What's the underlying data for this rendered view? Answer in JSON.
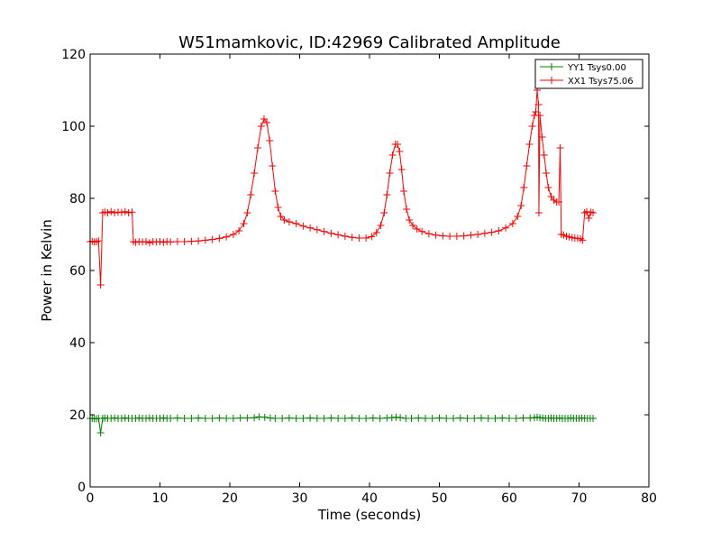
{
  "chart_data": {
    "type": "line",
    "title": "W51mamkovic, ID:42969 Calibrated Amplitude",
    "xlabel": "Time (seconds)",
    "ylabel": "Power in Kelvin",
    "xlim": [
      0,
      80
    ],
    "ylim": [
      0,
      120
    ],
    "xticks": [
      0,
      10,
      20,
      30,
      40,
      50,
      60,
      70,
      80
    ],
    "yticks": [
      0,
      20,
      40,
      60,
      80,
      100,
      120
    ],
    "grid": false,
    "legend_position": "top-right",
    "marker": "plus",
    "series": [
      {
        "name": "YY1 Tsys0.00",
        "color": "#008000",
        "points": [
          [
            0.0,
            19.0
          ],
          [
            0.3,
            19.0
          ],
          [
            0.6,
            18.9
          ],
          [
            0.9,
            18.9
          ],
          [
            1.2,
            19.0
          ],
          [
            1.5,
            15.0
          ],
          [
            1.8,
            19.0
          ],
          [
            2.1,
            19.1
          ],
          [
            2.5,
            19.0
          ],
          [
            3.0,
            19.0
          ],
          [
            3.5,
            19.1
          ],
          [
            4.0,
            19.0
          ],
          [
            4.5,
            19.0
          ],
          [
            5.0,
            19.1
          ],
          [
            5.5,
            19.0
          ],
          [
            6.0,
            19.0
          ],
          [
            6.5,
            19.0
          ],
          [
            7.0,
            19.1
          ],
          [
            7.5,
            19.0
          ],
          [
            8.0,
            19.0
          ],
          [
            8.5,
            19.1
          ],
          [
            9.0,
            19.0
          ],
          [
            9.5,
            19.0
          ],
          [
            10.0,
            19.0
          ],
          [
            10.5,
            19.1
          ],
          [
            11.0,
            19.0
          ],
          [
            11.5,
            19.0
          ],
          [
            12.5,
            19.1
          ],
          [
            13.5,
            19.0
          ],
          [
            14.5,
            19.0
          ],
          [
            15.5,
            19.1
          ],
          [
            16.5,
            19.0
          ],
          [
            17.5,
            19.0
          ],
          [
            18.5,
            19.1
          ],
          [
            19.5,
            19.0
          ],
          [
            20.5,
            19.0
          ],
          [
            21.5,
            19.1
          ],
          [
            22.5,
            19.1
          ],
          [
            23.5,
            19.2
          ],
          [
            24.2,
            19.4
          ],
          [
            25.0,
            19.3
          ],
          [
            25.8,
            19.1
          ],
          [
            26.5,
            19.0
          ],
          [
            27.5,
            19.0
          ],
          [
            28.5,
            19.1
          ],
          [
            29.5,
            19.0
          ],
          [
            30.5,
            19.0
          ],
          [
            31.5,
            19.1
          ],
          [
            32.5,
            19.0
          ],
          [
            33.5,
            19.0
          ],
          [
            34.5,
            19.1
          ],
          [
            35.5,
            19.0
          ],
          [
            36.5,
            19.0
          ],
          [
            37.5,
            19.1
          ],
          [
            38.5,
            19.0
          ],
          [
            39.5,
            19.0
          ],
          [
            40.5,
            19.1
          ],
          [
            41.5,
            19.0
          ],
          [
            42.5,
            19.1
          ],
          [
            43.2,
            19.2
          ],
          [
            43.8,
            19.3
          ],
          [
            44.4,
            19.2
          ],
          [
            45.2,
            19.0
          ],
          [
            46.0,
            19.0
          ],
          [
            47.0,
            19.1
          ],
          [
            48.0,
            19.0
          ],
          [
            49.0,
            19.0
          ],
          [
            50.0,
            19.1
          ],
          [
            51.0,
            19.0
          ],
          [
            52.0,
            19.0
          ],
          [
            53.0,
            19.1
          ],
          [
            54.0,
            19.0
          ],
          [
            55.0,
            19.0
          ],
          [
            56.0,
            19.1
          ],
          [
            57.0,
            19.0
          ],
          [
            58.0,
            19.0
          ],
          [
            59.0,
            19.1
          ],
          [
            60.0,
            19.0
          ],
          [
            61.0,
            19.0
          ],
          [
            62.0,
            19.1
          ],
          [
            63.0,
            19.1
          ],
          [
            63.6,
            19.2
          ],
          [
            64.0,
            19.3
          ],
          [
            64.4,
            19.2
          ],
          [
            64.8,
            19.1
          ],
          [
            65.2,
            19.0
          ],
          [
            65.6,
            19.0
          ],
          [
            66.0,
            19.1
          ],
          [
            66.4,
            19.0
          ],
          [
            66.8,
            19.0
          ],
          [
            67.2,
            19.1
          ],
          [
            67.6,
            19.0
          ],
          [
            68.0,
            19.0
          ],
          [
            68.4,
            19.0
          ],
          [
            68.8,
            19.1
          ],
          [
            69.2,
            19.0
          ],
          [
            69.6,
            19.0
          ],
          [
            70.0,
            19.0
          ],
          [
            70.4,
            19.1
          ],
          [
            70.8,
            19.0
          ],
          [
            71.2,
            19.0
          ],
          [
            71.6,
            19.0
          ],
          [
            72.0,
            19.0
          ]
        ]
      },
      {
        "name": "XX1 Tsys75.06",
        "color": "#ff0000",
        "points": [
          [
            0.0,
            68.0
          ],
          [
            0.3,
            68.1
          ],
          [
            0.6,
            67.9
          ],
          [
            0.9,
            68.0
          ],
          [
            1.2,
            68.2
          ],
          [
            1.5,
            56.0
          ],
          [
            1.8,
            76.0
          ],
          [
            2.1,
            76.2
          ],
          [
            2.5,
            76.0
          ],
          [
            3.0,
            76.3
          ],
          [
            3.5,
            76.0
          ],
          [
            4.0,
            76.2
          ],
          [
            4.5,
            76.1
          ],
          [
            5.0,
            76.3
          ],
          [
            5.5,
            76.0
          ],
          [
            6.0,
            76.2
          ],
          [
            6.2,
            68.0
          ],
          [
            6.5,
            67.8
          ],
          [
            7.0,
            68.0
          ],
          [
            7.5,
            67.9
          ],
          [
            8.0,
            68.0
          ],
          [
            8.5,
            67.7
          ],
          [
            9.0,
            68.0
          ],
          [
            9.5,
            67.9
          ],
          [
            10.0,
            68.0
          ],
          [
            10.5,
            67.8
          ],
          [
            11.0,
            68.0
          ],
          [
            11.5,
            67.9
          ],
          [
            12.5,
            68.0
          ],
          [
            13.5,
            68.0
          ],
          [
            14.5,
            68.1
          ],
          [
            15.5,
            68.2
          ],
          [
            16.5,
            68.4
          ],
          [
            17.5,
            68.6
          ],
          [
            18.5,
            68.9
          ],
          [
            19.5,
            69.3
          ],
          [
            20.5,
            70.0
          ],
          [
            21.3,
            71.0
          ],
          [
            22.0,
            73.0
          ],
          [
            22.5,
            76.0
          ],
          [
            23.0,
            81.0
          ],
          [
            23.5,
            87.0
          ],
          [
            24.0,
            94.0
          ],
          [
            24.5,
            100.0
          ],
          [
            24.9,
            102.0
          ],
          [
            25.3,
            101.0
          ],
          [
            25.7,
            96.0
          ],
          [
            26.1,
            89.0
          ],
          [
            26.5,
            82.0
          ],
          [
            26.9,
            77.5
          ],
          [
            27.3,
            75.0
          ],
          [
            27.8,
            74.0
          ],
          [
            28.5,
            73.5
          ],
          [
            29.5,
            73.0
          ],
          [
            30.5,
            72.3
          ],
          [
            31.5,
            71.8
          ],
          [
            32.5,
            71.3
          ],
          [
            33.5,
            70.8
          ],
          [
            34.5,
            70.3
          ],
          [
            35.5,
            69.9
          ],
          [
            36.5,
            69.5
          ],
          [
            37.5,
            69.2
          ],
          [
            38.5,
            69.0
          ],
          [
            39.5,
            69.0
          ],
          [
            40.3,
            69.4
          ],
          [
            41.0,
            70.5
          ],
          [
            41.6,
            72.5
          ],
          [
            42.1,
            76.0
          ],
          [
            42.5,
            81.0
          ],
          [
            42.9,
            87.0
          ],
          [
            43.3,
            92.0
          ],
          [
            43.7,
            95.0
          ],
          [
            44.0,
            95.0
          ],
          [
            44.3,
            93.0
          ],
          [
            44.6,
            88.0
          ],
          [
            44.9,
            82.0
          ],
          [
            45.3,
            77.0
          ],
          [
            45.7,
            74.0
          ],
          [
            46.2,
            72.5
          ],
          [
            46.8,
            71.5
          ],
          [
            47.5,
            70.8
          ],
          [
            48.5,
            70.2
          ],
          [
            49.5,
            69.8
          ],
          [
            50.5,
            69.6
          ],
          [
            51.5,
            69.5
          ],
          [
            52.5,
            69.5
          ],
          [
            53.5,
            69.6
          ],
          [
            54.5,
            69.8
          ],
          [
            55.5,
            70.0
          ],
          [
            56.5,
            70.3
          ],
          [
            57.5,
            70.6
          ],
          [
            58.5,
            71.0
          ],
          [
            59.5,
            71.8
          ],
          [
            60.5,
            73.0
          ],
          [
            61.2,
            75.0
          ],
          [
            61.7,
            78.0
          ],
          [
            62.1,
            83.0
          ],
          [
            62.5,
            89.0
          ],
          [
            62.9,
            95.0
          ],
          [
            63.3,
            100.0
          ],
          [
            63.6,
            103.0
          ],
          [
            63.8,
            104.0
          ],
          [
            64.0,
            110.0
          ],
          [
            64.2,
            106.0
          ],
          [
            64.25,
            76.0
          ],
          [
            64.4,
            103.0
          ],
          [
            64.7,
            97.0
          ],
          [
            65.0,
            92.0
          ],
          [
            65.3,
            87.0
          ],
          [
            65.6,
            83.0
          ],
          [
            66.0,
            80.5
          ],
          [
            66.4,
            79.5
          ],
          [
            66.8,
            79.0
          ],
          [
            67.1,
            79.0
          ],
          [
            67.3,
            94.0
          ],
          [
            67.45,
            70.0
          ],
          [
            67.8,
            69.8
          ],
          [
            68.2,
            69.5
          ],
          [
            68.6,
            69.3
          ],
          [
            69.0,
            69.1
          ],
          [
            69.4,
            69.0
          ],
          [
            69.8,
            68.9
          ],
          [
            70.2,
            68.8
          ],
          [
            70.5,
            68.4
          ],
          [
            70.8,
            76.0
          ],
          [
            71.1,
            76.3
          ],
          [
            71.4,
            74.5
          ],
          [
            71.7,
            76.2
          ],
          [
            72.0,
            76.0
          ]
        ]
      }
    ]
  }
}
